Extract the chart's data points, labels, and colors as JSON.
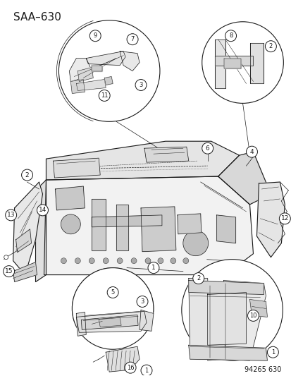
{
  "title": "SAA–630",
  "watermark": "94265 630",
  "bg_color": "#ffffff",
  "line_color": "#1a1a1a",
  "fig_width": 4.14,
  "fig_height": 5.33,
  "dpi": 100,
  "font_size_title": 11,
  "font_size_callout": 6.5,
  "font_size_watermark": 7,
  "callout_circle_r": 0.016
}
